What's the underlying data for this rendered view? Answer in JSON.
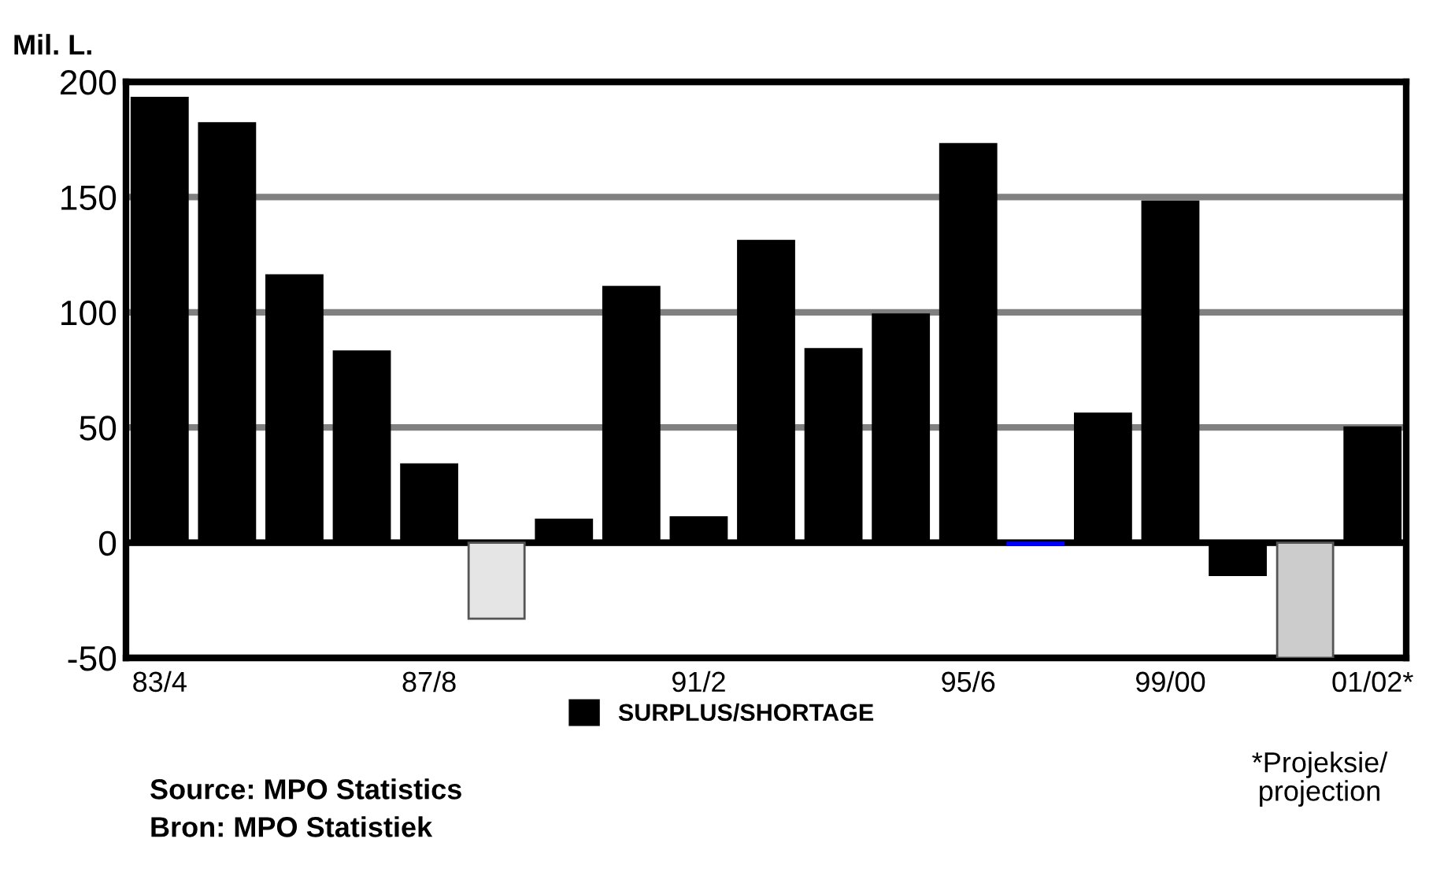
{
  "chart_data": {
    "type": "bar",
    "ylabel": "Mil. L.",
    "categories": [
      "83/4",
      null,
      null,
      null,
      "87/8",
      null,
      null,
      null,
      "91/2",
      null,
      null,
      null,
      "95/6",
      null,
      null,
      "99/00",
      null,
      null,
      "01/02*"
    ],
    "series": [
      {
        "name": "SURPLUS/SHORTAGE",
        "color": "#000000",
        "colors": [
          "#000000",
          "#000000",
          "#000000",
          "#000000",
          "#000000",
          "#e5e5e5",
          "#000000",
          "#000000",
          "#000000",
          "#000000",
          "#000000",
          "#000000",
          "#000000",
          "#0000ff",
          "#000000",
          "#000000",
          "#000000",
          "#cccccc",
          "#000000"
        ],
        "values": [
          193,
          182,
          116,
          83,
          34,
          -33,
          10,
          111,
          11,
          131,
          84,
          99,
          173,
          -1,
          56,
          148,
          -14,
          -50,
          50
        ]
      }
    ],
    "ylim": [
      -50,
      200
    ],
    "yticks": [
      -50,
      0,
      50,
      100,
      150,
      200
    ],
    "grid": "y",
    "legend": "bottom",
    "annotations": [
      "*Projeksie/\nprojection",
      "Source: MPO Statistics",
      "Bron: MPO Statistiek"
    ]
  }
}
